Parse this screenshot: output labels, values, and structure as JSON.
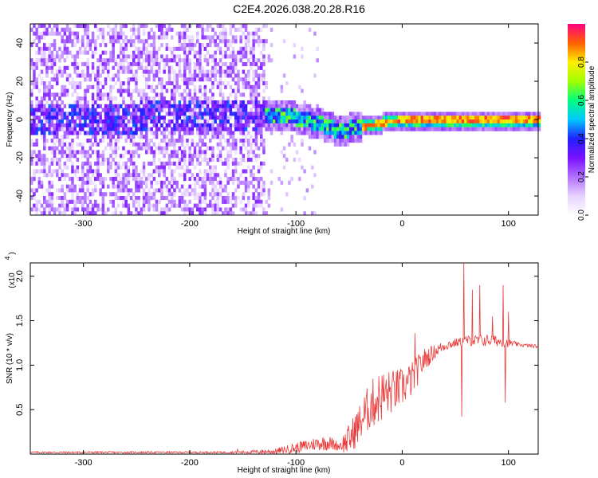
{
  "figure_title": "C2E4.2026.038.20.28.R16",
  "colors": {
    "trace": "#e83a3a",
    "frame": "#000000",
    "colormap": [
      "#ffffff",
      "#e6d2ff",
      "#b070ff",
      "#7a10ff",
      "#2020ff",
      "#00c8ff",
      "#00ff80",
      "#a0ff00",
      "#ffee00",
      "#ff6000",
      "#ff0080"
    ]
  },
  "chart_data": [
    {
      "type": "heatmap",
      "title": "",
      "xlabel": "Height of straight line (km)",
      "ylabel": "Frequency (Hz)",
      "xlim": [
        -350,
        128
      ],
      "ylim": [
        -50,
        50
      ],
      "xticks": [
        -300,
        -200,
        -100,
        0,
        100
      ],
      "yticks": [
        -40,
        -20,
        0,
        20,
        40
      ],
      "colorbar": {
        "label": "Normalized spectral amplitude",
        "range": [
          0,
          1
        ],
        "ticks": [
          "0.0",
          "0.2",
          "0.4",
          "0.6",
          "0.8"
        ]
      },
      "ridge": {
        "x": [
          -350,
          -250,
          -160,
          -130,
          -110,
          -95,
          -80,
          -70,
          -60,
          -50,
          -40,
          -30,
          -20,
          -10,
          0,
          50,
          128
        ],
        "y": [
          2,
          2,
          3,
          4,
          3,
          1,
          -1,
          -3,
          -5,
          -4,
          -3,
          -2,
          -1,
          0,
          1,
          1,
          1
        ]
      }
    },
    {
      "type": "line",
      "title": "",
      "xlabel": "Height of straight line (km)",
      "ylabel": "SNR (10 * v/v)",
      "yscale_label": "(x10",
      "yscale_exp": "4",
      "xlim": [
        -350,
        128
      ],
      "ylim": [
        0,
        2.15
      ],
      "xticks": [
        -300,
        -200,
        -100,
        0,
        100
      ],
      "yticks": [
        "0.5",
        "1.0",
        "1.5",
        "2.0"
      ],
      "envelope": {
        "x": [
          -350,
          -160,
          -120,
          -100,
          -80,
          -70,
          -60,
          -50,
          -40,
          -30,
          -20,
          -10,
          0,
          10,
          20,
          30,
          40,
          50,
          60,
          70,
          80,
          90,
          100,
          110,
          128
        ],
        "base": [
          0.02,
          0.02,
          0.03,
          0.07,
          0.12,
          0.13,
          0.09,
          0.16,
          0.35,
          0.55,
          0.65,
          0.7,
          0.75,
          0.85,
          1.05,
          1.15,
          1.22,
          1.25,
          1.28,
          1.27,
          1.28,
          1.27,
          1.25,
          1.23,
          1.21
        ],
        "noise": [
          0.01,
          0.01,
          0.03,
          0.06,
          0.08,
          0.09,
          0.05,
          0.18,
          0.22,
          0.28,
          0.3,
          0.25,
          0.22,
          0.2,
          0.14,
          0.08,
          0.06,
          0.05,
          0.05,
          0.07,
          0.07,
          0.06,
          0.05,
          0.02,
          0.02
        ]
      },
      "spikes": [
        {
          "x": 58,
          "y": 2.15
        },
        {
          "x": 56,
          "y": 0.42
        },
        {
          "x": 73,
          "y": 1.9
        },
        {
          "x": 66,
          "y": 1.85
        },
        {
          "x": 95,
          "y": 1.9
        },
        {
          "x": 97,
          "y": 0.58
        },
        {
          "x": 100,
          "y": 1.6
        },
        {
          "x": 85,
          "y": 1.55
        },
        {
          "x": 12,
          "y": 1.36
        },
        {
          "x": -155,
          "y": 0.06
        }
      ]
    }
  ]
}
